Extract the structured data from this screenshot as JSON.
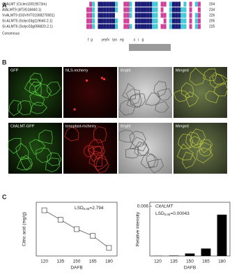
{
  "panel_a": {
    "label": "A",
    "rows": [
      {
        "name": "CitALMT (Ciclev10019573m)",
        "end": 204
      },
      {
        "name": "AtALMT9 (AT3G18440.1)",
        "end": 234
      },
      {
        "name": "VvALMT9 (GSVIVT01008270001)",
        "end": 226
      },
      {
        "name": "SI-ALMT5 (Solyc03g119640.2.1)",
        "end": 205
      },
      {
        "name": "SI-ALMT6 (Solyc03g096820.2.1)",
        "end": 225
      }
    ],
    "consensus_label": "Consensus",
    "consensus": "f  g         yeyfv   tyo   eg          s   i   g"
  },
  "panel_b": {
    "label": "B",
    "row1": [
      "GFP",
      "NLS-mcherry",
      "Bright",
      "Merged"
    ],
    "row2": [
      "CitALMT-GFP",
      "tonoplast-mcherry",
      "Bright",
      "Merged"
    ]
  },
  "panel_c": {
    "label": "C"
  },
  "chart_data": [
    {
      "type": "line",
      "ylabel": "Citric acid (mg/g)",
      "xlabel": "DAFB",
      "categories": [
        "120",
        "135",
        "150",
        "165",
        "180"
      ],
      "values": [
        34,
        27,
        20,
        15,
        6
      ],
      "color": "#444444",
      "ylim": [
        0,
        40
      ],
      "annotation": {
        "text": "LSD",
        "subscript": "0.05",
        "rest": "=2.794"
      }
    },
    {
      "type": "bar",
      "ylabel": "Relative intensity",
      "xlabel": "DAFB",
      "title": "CitALMT",
      "categories": [
        "120",
        "135",
        "150",
        "165",
        "180"
      ],
      "values": [
        2e-05,
        5e-05,
        0.0003,
        0.0009,
        0.005
      ],
      "color": "#000000",
      "ylim": [
        0,
        0.0065
      ],
      "yticks": [
        0.006
      ],
      "annotation": {
        "text": "LSD",
        "subscript": "0.05",
        "rest": "=0.00043"
      }
    }
  ]
}
